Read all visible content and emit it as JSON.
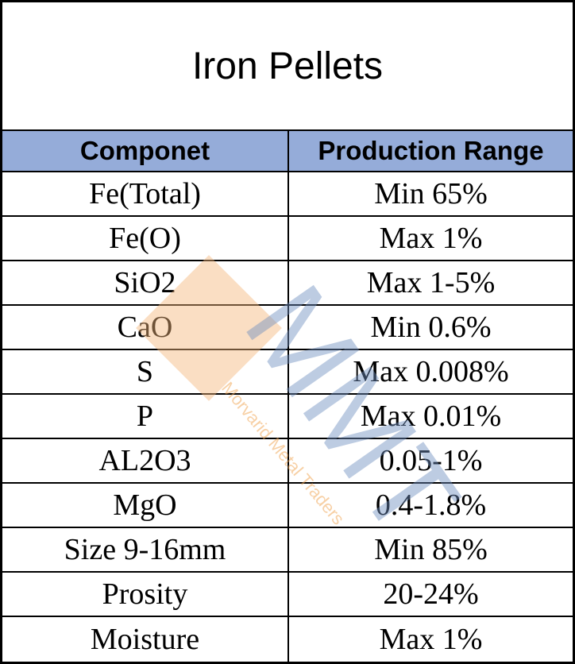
{
  "title": "Iron Pellets",
  "table": {
    "header": [
      "Componet",
      "Production Range"
    ],
    "rows": [
      [
        "Fe(Total)",
        "Min 65%"
      ],
      [
        "Fe(O)",
        "Max 1%"
      ],
      [
        "SiO2",
        "Max 1-5%"
      ],
      [
        "CaO",
        "Min 0.6%"
      ],
      [
        "S",
        "Max 0.008%"
      ],
      [
        "P",
        "Max 0.01%"
      ],
      [
        "AL2O3",
        "0.05-1%"
      ],
      [
        "MgO",
        "0.4-1.8%"
      ],
      [
        "Size 9-16mm",
        "Min 85%"
      ],
      [
        "Prosity",
        "20-24%"
      ],
      [
        "Moisture",
        "Max 1%"
      ]
    ]
  },
  "watermark": {
    "logo": "MMT",
    "name": "Morvarid Metal Traders"
  }
}
